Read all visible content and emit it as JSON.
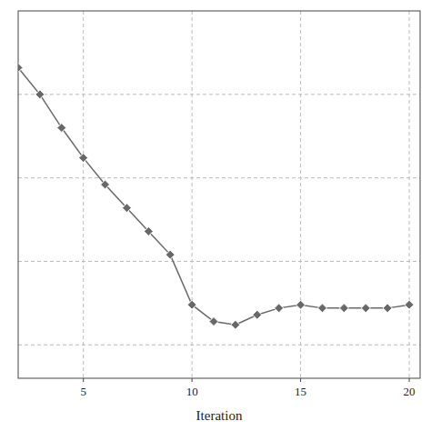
{
  "chart_data": {
    "type": "line",
    "xlabel": "Iteration",
    "x": [
      2,
      3,
      4,
      5,
      6,
      7,
      8,
      9,
      10,
      11,
      12,
      13,
      14,
      15,
      16,
      17,
      18,
      19,
      20
    ],
    "values": [
      0.93,
      0.85,
      0.75,
      0.66,
      0.58,
      0.51,
      0.44,
      0.37,
      0.22,
      0.17,
      0.16,
      0.19,
      0.21,
      0.22,
      0.21,
      0.21,
      0.21,
      0.21,
      0.22
    ],
    "color": "#686868",
    "marker": "diamond",
    "xlim": [
      2,
      20.5
    ],
    "ylim": [
      0.0,
      1.1
    ],
    "xticks": [
      5,
      10,
      15,
      20
    ],
    "yticks": [
      0.1,
      0.35,
      0.6,
      0.85
    ],
    "grid": true,
    "tick_labels": "x"
  }
}
